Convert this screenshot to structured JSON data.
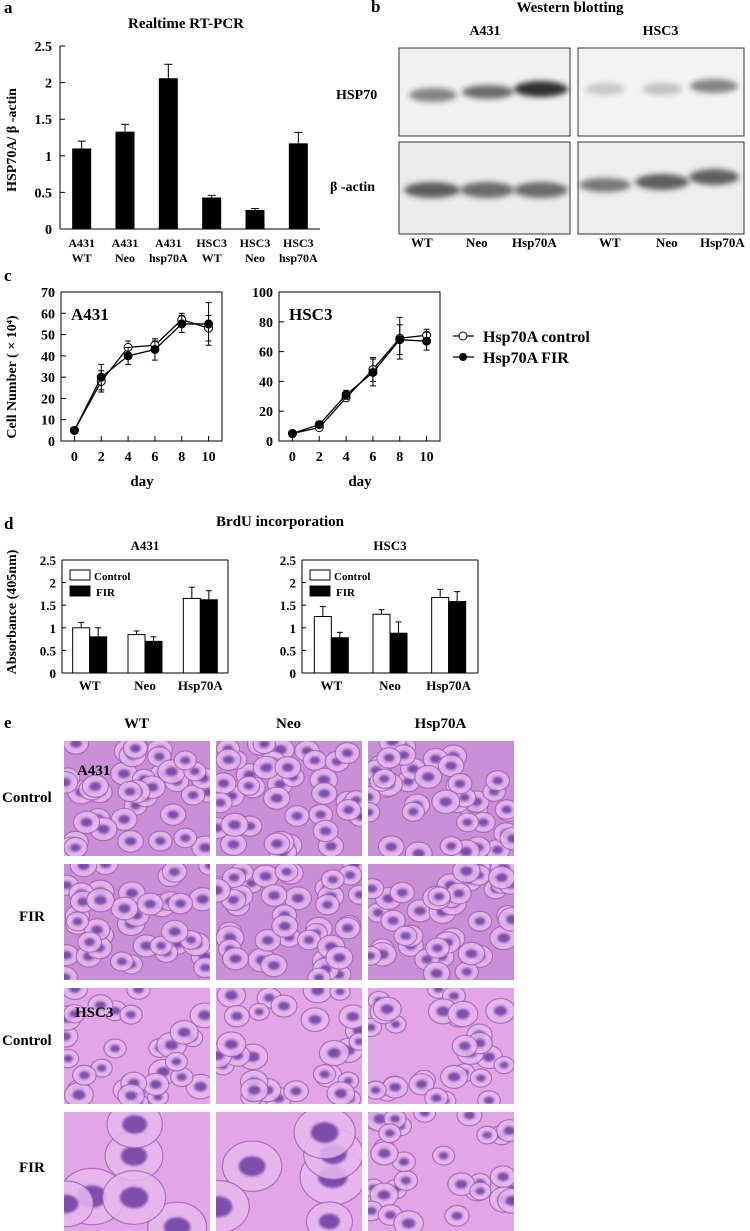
{
  "panels": {
    "a": {
      "letter": "a",
      "title": "Realtime RT-PCR",
      "ylabel": "HSP70A/ β -actin",
      "yticks": [
        "0",
        "0.5",
        "1",
        "1.5",
        "2",
        "2.5"
      ]
    },
    "b": {
      "letter": "b",
      "title": "Western blotting",
      "cell_lines": [
        "A431",
        "HSC3"
      ],
      "rows": [
        "HSP70",
        "β -actin"
      ],
      "lanes": [
        "WT",
        "Neo",
        "Hsp70A",
        "WT",
        "Neo",
        "Hsp70A"
      ],
      "band_intensity": {
        "A431_HSP70": [
          0.45,
          0.55,
          0.85
        ],
        "A431_actin": [
          0.6,
          0.55,
          0.55
        ],
        "HSC3_HSP70": [
          0.2,
          0.2,
          0.5
        ],
        "HSC3_actin": [
          0.5,
          0.6,
          0.6
        ]
      }
    },
    "c": {
      "letter": "c",
      "ylabel": "Cell Number ( × 10⁴)",
      "xlabel": "day",
      "legend": [
        "Hsp70A control",
        "Hsp70A FIR"
      ]
    },
    "d": {
      "letter": "d",
      "title": "BrdU incorporation",
      "ylabel": "Absorbance (405nm)",
      "legend": [
        "Control",
        "FIR"
      ]
    },
    "e": {
      "letter": "e",
      "columns": [
        "WT",
        "Neo",
        "Hsp70A"
      ],
      "rows": [
        "Control",
        "FIR",
        "Control",
        "FIR"
      ],
      "inset_labels": [
        "A431",
        "HSC3"
      ]
    }
  },
  "chart_data": [
    {
      "id": "a",
      "type": "bar",
      "title": "Realtime RT-PCR",
      "ylabel": "HSP70A/ β -actin",
      "ylim": [
        0,
        2.5
      ],
      "categories": [
        [
          "A431",
          "WT"
        ],
        [
          "A431",
          "Neo"
        ],
        [
          "A431",
          "hsp70A"
        ],
        [
          "HSC3",
          "WT"
        ],
        [
          "HSC3",
          "Neo"
        ],
        [
          "HSC3",
          "hsp70A"
        ]
      ],
      "values": [
        1.1,
        1.33,
        2.06,
        0.43,
        0.26,
        1.17
      ],
      "errors": [
        0.1,
        0.1,
        0.19,
        0.03,
        0.02,
        0.15
      ],
      "color": "#000000"
    },
    {
      "id": "c1",
      "type": "line",
      "title": "A431",
      "xlabel": "day",
      "ylabel": "Cell Number ( × 10⁴)",
      "xlim": [
        -1,
        11
      ],
      "ylim": [
        0,
        70
      ],
      "xticks": [
        0,
        2,
        4,
        6,
        8,
        10
      ],
      "yticks": [
        0,
        10,
        20,
        30,
        40,
        50,
        60,
        70
      ],
      "series": [
        {
          "name": "Hsp70A control",
          "marker": "open",
          "x": [
            0,
            2,
            4,
            6,
            8,
            10
          ],
          "y": [
            5,
            28,
            44,
            45,
            57,
            53
          ],
          "err": [
            0,
            5,
            3,
            2,
            3,
            6
          ]
        },
        {
          "name": "Hsp70A FIR",
          "marker": "filled",
          "x": [
            0,
            2,
            4,
            6,
            8,
            10
          ],
          "y": [
            5,
            30,
            40,
            43,
            55,
            55
          ],
          "err": [
            0,
            6,
            4,
            5,
            4,
            10
          ]
        }
      ]
    },
    {
      "id": "c2",
      "type": "line",
      "title": "HSC3",
      "xlabel": "day",
      "xlim": [
        -1,
        11
      ],
      "ylim": [
        0,
        100
      ],
      "xticks": [
        0,
        2,
        4,
        6,
        8,
        10
      ],
      "yticks": [
        0,
        20,
        40,
        60,
        80,
        100
      ],
      "series": [
        {
          "name": "Hsp70A control",
          "marker": "open",
          "x": [
            0,
            2,
            4,
            6,
            8,
            10
          ],
          "y": [
            5,
            9,
            29,
            48,
            69,
            71
          ],
          "err": [
            0,
            1,
            2,
            8,
            14,
            4
          ]
        },
        {
          "name": "Hsp70A FIR",
          "marker": "filled",
          "x": [
            0,
            2,
            4,
            6,
            8,
            10
          ],
          "y": [
            5,
            11,
            31,
            46,
            68,
            67
          ],
          "err": [
            0,
            2,
            3,
            9,
            10,
            6
          ]
        }
      ]
    },
    {
      "id": "d1",
      "type": "bar",
      "title": "A431",
      "ylabel": "Absorbance (405nm)",
      "ylim": [
        0,
        2.5
      ],
      "categories": [
        "WT",
        "Neo",
        "Hsp70A"
      ],
      "series": [
        {
          "name": "Control",
          "color": "#ffffff",
          "values": [
            1.0,
            0.85,
            1.65
          ],
          "errors": [
            0.12,
            0.08,
            0.25
          ]
        },
        {
          "name": "FIR",
          "color": "#000000",
          "values": [
            0.8,
            0.7,
            1.62
          ],
          "errors": [
            0.2,
            0.1,
            0.2
          ]
        }
      ]
    },
    {
      "id": "d2",
      "type": "bar",
      "title": "HSC3",
      "ylim": [
        0,
        2.5
      ],
      "categories": [
        "WT",
        "Neo",
        "Hsp70A"
      ],
      "series": [
        {
          "name": "Control",
          "color": "#ffffff",
          "values": [
            1.25,
            1.3,
            1.67
          ],
          "errors": [
            0.22,
            0.1,
            0.18
          ]
        },
        {
          "name": "FIR",
          "color": "#000000",
          "values": [
            0.78,
            0.88,
            1.58
          ],
          "errors": [
            0.12,
            0.25,
            0.22
          ]
        }
      ]
    }
  ]
}
